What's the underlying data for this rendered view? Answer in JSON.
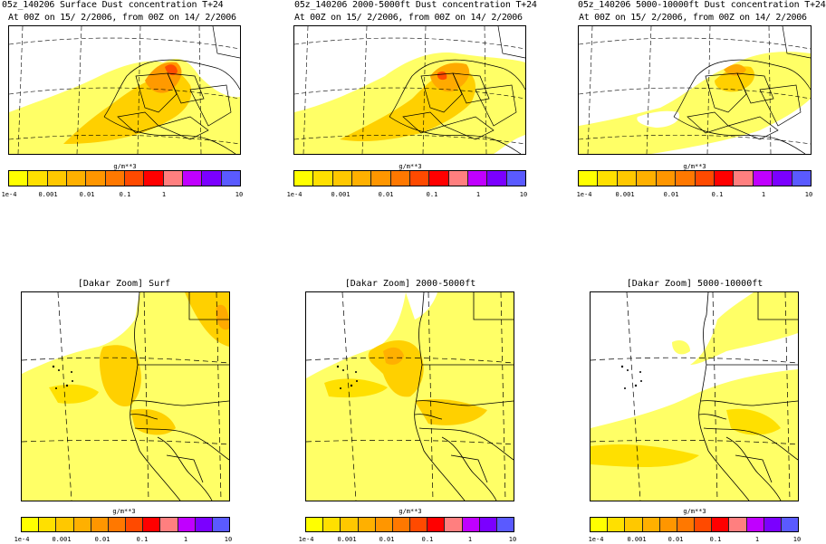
{
  "top_panels": [
    {
      "title": "05z_140206 Surface Dust concentration T+24",
      "subtitle": "At 00Z on 15/ 2/2006, from 00Z on 14/ 2/2006",
      "colorbar_unit": "g/m**3"
    },
    {
      "title": "05z_140206 2000-5000ft Dust concentration T+24",
      "subtitle": "At 00Z on 15/ 2/2006, from 00Z on 14/ 2/2006",
      "colorbar_unit": "g/m**3"
    },
    {
      "title": "05z_140206 5000-10000ft Dust concentration T+24",
      "subtitle": "At 00Z on 15/ 2/2006, from 00Z on 14/ 2/2006",
      "colorbar_unit": "g/m**3"
    }
  ],
  "zoom_panels": [
    {
      "title": "[Dakar Zoom] Surf",
      "colorbar_unit": "g/m**3"
    },
    {
      "title": "[Dakar Zoom] 2000-5000ft",
      "colorbar_unit": "g/m**3"
    },
    {
      "title": "[Dakar Zoom] 5000-10000ft",
      "colorbar_unit": "g/m**3"
    }
  ],
  "colorbar": {
    "colors": [
      "#ffff00",
      "#ffe000",
      "#ffc800",
      "#ffb000",
      "#ff9600",
      "#ff7800",
      "#ff4a00",
      "#ff0000",
      "#ff7f7f",
      "#c000ff",
      "#7b00ff",
      "#5a5aff"
    ],
    "labels": [
      "1e-4",
      "0.001",
      "0.01",
      "0.1",
      "1",
      "10"
    ]
  }
}
